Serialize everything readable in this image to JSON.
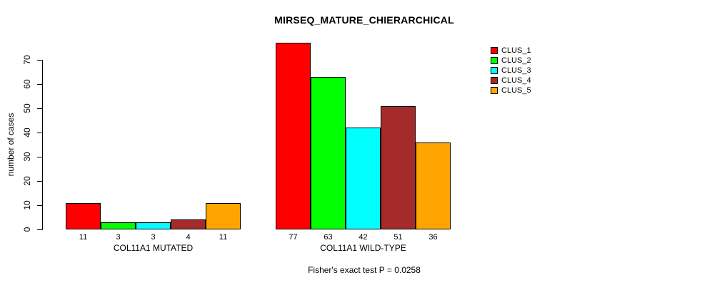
{
  "chart_data": {
    "type": "bar",
    "title": "MIRSEQ_MATURE_CHIERARCHICAL",
    "ylabel": "number of cases",
    "xlabel": "",
    "ylim": [
      0,
      70
    ],
    "yticks": [
      0,
      10,
      20,
      30,
      40,
      50,
      60,
      70
    ],
    "grid": false,
    "legend_position": "top-right",
    "bar_border_color": "#000000",
    "series": [
      {
        "name": "CLUS_1",
        "color": "#FF0000"
      },
      {
        "name": "CLUS_2",
        "color": "#00FF00"
      },
      {
        "name": "CLUS_3",
        "color": "#00FFFF"
      },
      {
        "name": "CLUS_4",
        "color": "#A52A2A"
      },
      {
        "name": "CLUS_5",
        "color": "#FFA500"
      }
    ],
    "groups": [
      {
        "label": "COL11A1 MUTATED",
        "values": [
          11,
          3,
          3,
          4,
          11
        ]
      },
      {
        "label": "COL11A1 WILD-TYPE",
        "values": [
          77,
          63,
          42,
          51,
          36
        ]
      }
    ],
    "annotation": "Fisher's exact test P = 0.0258"
  }
}
